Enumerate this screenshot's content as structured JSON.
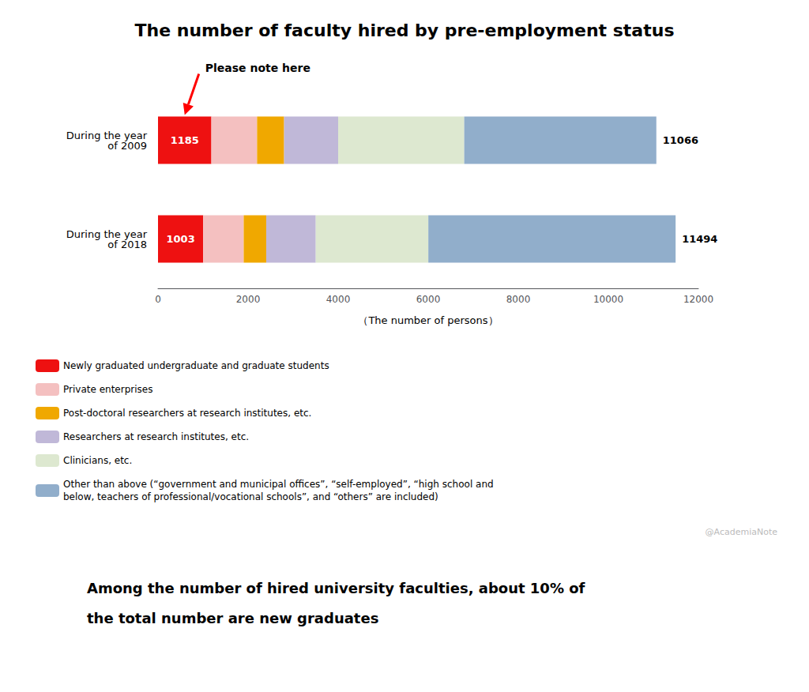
{
  "chart_data": {
    "type": "bar",
    "orientation": "horizontal",
    "stacked": true,
    "title": "The number of faculty hired by pre-employment status",
    "categories": [
      "During the year\nof 2009",
      "During the year\nof 2018"
    ],
    "series": [
      {
        "name": "Newly graduated undergraduate and graduate students",
        "color": "#ee1111",
        "values": [
          1185,
          1003
        ],
        "data_labels": true
      },
      {
        "name": "Private enterprises",
        "color": "#f4c0c0",
        "values": [
          1015,
          900
        ]
      },
      {
        "name": "Post-doctoral researchers at research institutes, etc.",
        "color": "#f0a800",
        "values": [
          600,
          500
        ]
      },
      {
        "name": "Researchers at research institutes, etc.",
        "color": "#c0b8d8",
        "values": [
          1200,
          1100
        ]
      },
      {
        "name": "Clinicians, etc.",
        "color": "#dde8d0",
        "values": [
          2800,
          2500
        ]
      },
      {
        "name": "Other than above (“government and municipal offices”, “self-employed”, “high school and\nbelow, teachers of professional/vocational schools”, and “others” are included)",
        "color": "#91aecb",
        "values": [
          4266,
          5491
        ]
      }
    ],
    "totals": [
      11066,
      11494
    ],
    "xlabel": "（The number of persons）",
    "xlim": [
      0,
      12000
    ],
    "xticks": [
      0,
      2000,
      4000,
      6000,
      8000,
      10000,
      12000
    ],
    "grid": false,
    "legend": "bottom",
    "annotation": "Please note here",
    "watermark": "@AcademiaNote",
    "notes": [
      "Among the number of hired university faculties, about 10% of",
      "the total number are new graduates"
    ]
  }
}
